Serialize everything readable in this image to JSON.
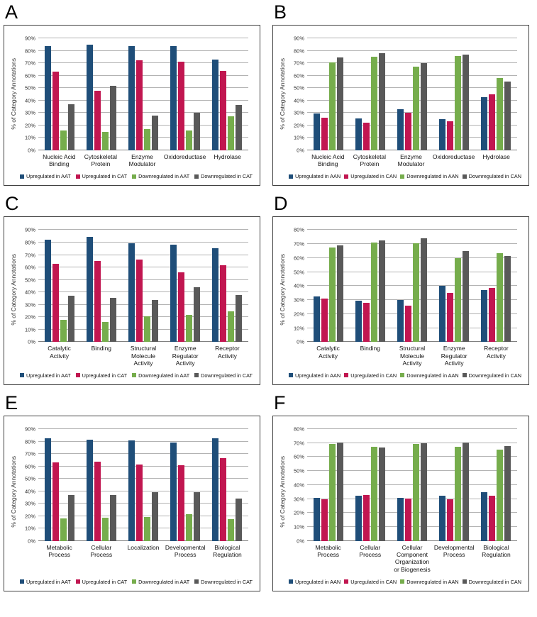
{
  "colors": {
    "up_first": "#1f4e79",
    "up_second": "#c11650",
    "down_first": "#76ad4c",
    "down_second": "#595959",
    "gridline": "#b3b3b3",
    "axis": "#808080",
    "box_border": "#404040"
  },
  "chart_data": [
    {
      "panel": "A",
      "type": "bar",
      "ylabel": "% of Category Annotations",
      "ymax": 90,
      "ytick_step": 10,
      "grid": true,
      "legend_position": "bottom",
      "categories": [
        "Nucleic Acid Binding",
        "Cytoskeletal Protein",
        "Enzyme Modulator",
        "Oxidoreductase",
        "Hydrolase"
      ],
      "series": [
        {
          "name": "Upregulated in AAT",
          "color": "#1f4e79",
          "values": [
            84,
            85,
            83.5,
            84,
            73
          ]
        },
        {
          "name": "Upregulated in CAT",
          "color": "#c11650",
          "values": [
            63,
            48,
            72.5,
            71,
            64
          ]
        },
        {
          "name": "Downregulated in AAT",
          "color": "#76ad4c",
          "values": [
            16,
            15,
            17,
            16,
            27.5
          ]
        },
        {
          "name": "Downregulated in CAT",
          "color": "#595959",
          "values": [
            37,
            52,
            28,
            30,
            36.5
          ]
        }
      ]
    },
    {
      "panel": "B",
      "type": "bar",
      "ylabel": "% of Category Annotations",
      "ymax": 90,
      "ytick_step": 10,
      "grid": true,
      "legend_position": "bottom",
      "categories": [
        "Nucleic Acid Binding",
        "Cytoskeletal Protein",
        "Enzyme Modulator",
        "Oxidoreductase",
        "Hydrolase"
      ],
      "series": [
        {
          "name": "Upregulated in AAN",
          "color": "#1f4e79",
          "values": [
            29.5,
            25.5,
            33,
            25,
            42.5
          ]
        },
        {
          "name": "Upregulated in CAN",
          "color": "#c11650",
          "values": [
            26,
            22.5,
            30,
            23.5,
            45
          ]
        },
        {
          "name": "Downregulated in AAN",
          "color": "#76ad4c",
          "values": [
            70.5,
            75,
            67.5,
            75.5,
            58
          ]
        },
        {
          "name": "Downregulated in CAN",
          "color": "#595959",
          "values": [
            74.5,
            78,
            70,
            77,
            55
          ]
        }
      ]
    },
    {
      "panel": "C",
      "type": "bar",
      "ylabel": "% of Category Annotations",
      "ymax": 90,
      "ytick_step": 10,
      "grid": true,
      "legend_position": "bottom",
      "categories": [
        "Catalytic Activity",
        "Binding",
        "Structural Molecule Activity",
        "Enzyme Regulator Activity",
        "Receptor Activity"
      ],
      "series": [
        {
          "name": "Upregulated in AAT",
          "color": "#1f4e79",
          "values": [
            82.5,
            84.5,
            79.5,
            78.5,
            75.5
          ]
        },
        {
          "name": "Upregulated in CAT",
          "color": "#c11650",
          "values": [
            63,
            65,
            66.5,
            56,
            62
          ]
        },
        {
          "name": "Downregulated in AAT",
          "color": "#76ad4c",
          "values": [
            18,
            16,
            21,
            22,
            25
          ]
        },
        {
          "name": "Downregulated in CAT",
          "color": "#595959",
          "values": [
            37.5,
            35.5,
            34,
            44,
            38
          ]
        }
      ]
    },
    {
      "panel": "D",
      "type": "bar",
      "ylabel": "% of Category Annotations",
      "ymax": 80,
      "ytick_step": 10,
      "grid": true,
      "legend_position": "bottom",
      "categories": [
        "Catalytic Activity",
        "Binding",
        "Structural Molecule Activity",
        "Enzyme Regulator Activity",
        "Receptor Activity"
      ],
      "series": [
        {
          "name": "Upregulated in AAN",
          "color": "#1f4e79",
          "values": [
            32.5,
            29.5,
            30,
            40,
            37
          ]
        },
        {
          "name": "Upregulated in CAN",
          "color": "#c11650",
          "values": [
            31,
            28,
            26,
            35,
            38.5
          ]
        },
        {
          "name": "Downregulated in AAN",
          "color": "#76ad4c",
          "values": [
            67.5,
            71,
            70.5,
            60,
            63.5
          ]
        },
        {
          "name": "Downregulated in CAN",
          "color": "#595959",
          "values": [
            69,
            72.5,
            74,
            65,
            61.5
          ]
        }
      ]
    },
    {
      "panel": "E",
      "type": "bar",
      "ylabel": "% of Category Annotations",
      "ymax": 90,
      "ytick_step": 10,
      "grid": true,
      "legend_position": "bottom",
      "categories": [
        "Metabolic Process",
        "Cellular Process",
        "Localization",
        "Developmental Process",
        "Biological Regulation"
      ],
      "series": [
        {
          "name": "Upregulated in AAT",
          "color": "#1f4e79",
          "values": [
            82.5,
            81.5,
            81,
            79,
            82.5
          ]
        },
        {
          "name": "Upregulated in CAT",
          "color": "#c11650",
          "values": [
            63,
            63.5,
            61.5,
            61,
            66.5
          ]
        },
        {
          "name": "Downregulated in AAT",
          "color": "#76ad4c",
          "values": [
            18,
            19,
            19.5,
            21.5,
            17.5
          ]
        },
        {
          "name": "Downregulated in CAT",
          "color": "#595959",
          "values": [
            37,
            37,
            39,
            39.5,
            34
          ]
        }
      ]
    },
    {
      "panel": "F",
      "type": "bar",
      "ylabel": "% of Category Annotations",
      "ymax": 80,
      "ytick_step": 10,
      "grid": true,
      "legend_position": "bottom",
      "categories": [
        "Metabolic Process",
        "Cellular Process",
        "Cellular Component Organization or Biogenesis",
        "Developmental Process",
        "Biological Regulation"
      ],
      "series": [
        {
          "name": "Upregulated in AAN",
          "color": "#1f4e79",
          "values": [
            31,
            32.5,
            31,
            32.5,
            35
          ]
        },
        {
          "name": "Upregulated in CAN",
          "color": "#c11650",
          "values": [
            30,
            33,
            30.5,
            30,
            32.5
          ]
        },
        {
          "name": "Downregulated in AAN",
          "color": "#76ad4c",
          "values": [
            69.5,
            67.5,
            69.5,
            67.5,
            65.5
          ]
        },
        {
          "name": "Downregulated in CAN",
          "color": "#595959",
          "values": [
            70.5,
            67,
            70,
            70.5,
            68
          ]
        }
      ]
    }
  ]
}
